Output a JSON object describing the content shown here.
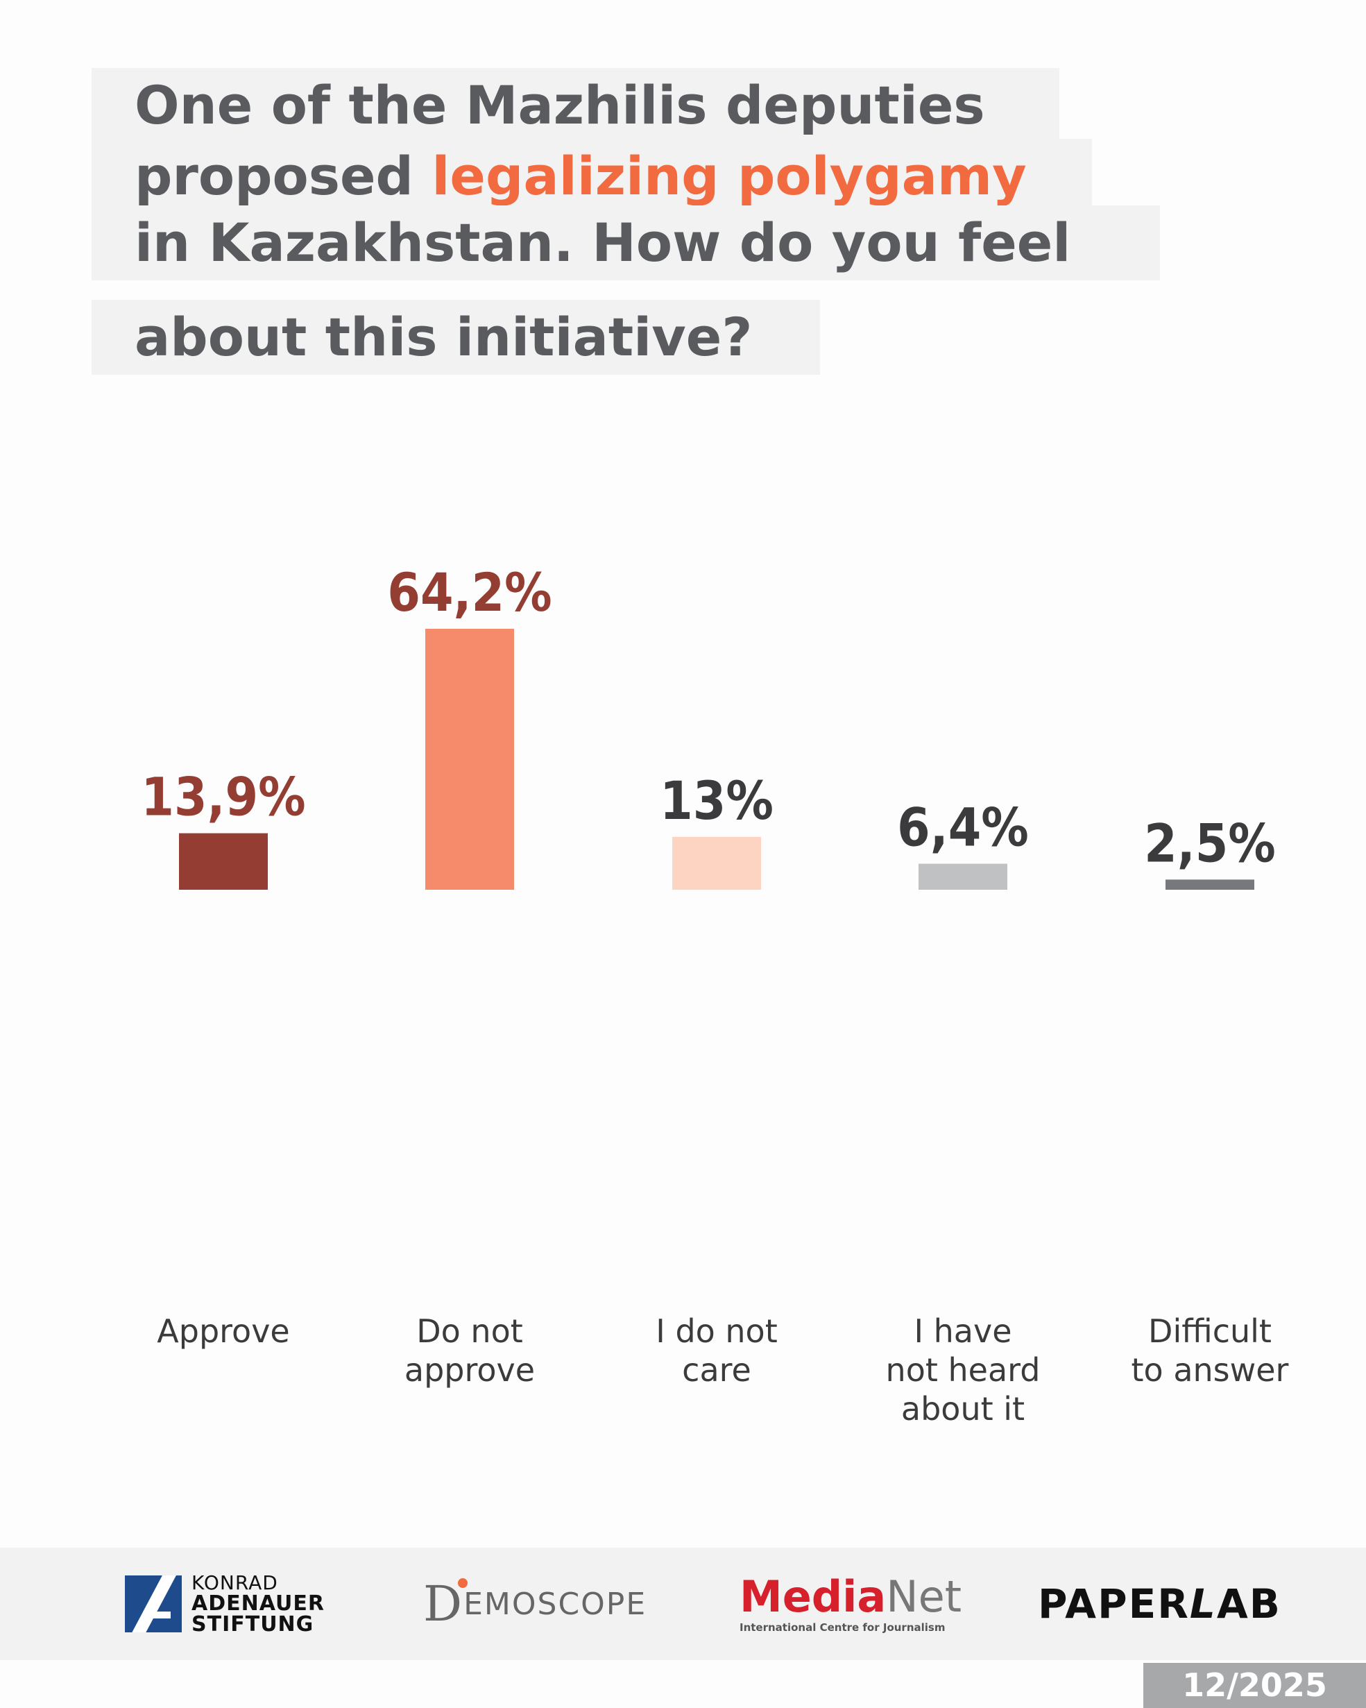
{
  "title": {
    "line1": "One of the Mazhilis deputies",
    "line2_pre": "proposed ",
    "line2_hl": "legalizing polygamy",
    "line3": "in Kazakhstan. How do you feel",
    "line4": "about this initiative?",
    "accent": "#f26a3f"
  },
  "chart_data": {
    "type": "bar",
    "title": "One of the Mazhilis deputies proposed legalizing polygamy in Kazakhstan. How do you feel about this initiative?",
    "categories": [
      [
        "Approve"
      ],
      [
        "Do not",
        "approve"
      ],
      [
        "I do not",
        "care"
      ],
      [
        "I have",
        "not heard",
        "about it"
      ],
      [
        "Difficult",
        "to answer"
      ]
    ],
    "values": [
      13.9,
      64.2,
      13,
      6.4,
      2.5
    ],
    "value_labels": [
      "13,9%",
      "64,2%",
      "13%",
      "6,4%",
      "2,5%"
    ],
    "bar_colors": [
      "#943d33",
      "#f68b6b",
      "#fdd4c1",
      "#c0c1c3",
      "#77787c"
    ],
    "label_colors": [
      "#943d33",
      "#943d33",
      "#3b3b3d",
      "#3b3b3d",
      "#3b3b3d"
    ],
    "grid": false,
    "legend": "none",
    "ylim": [
      0,
      64.2
    ]
  },
  "footer": {
    "kas": [
      "KONRAD",
      "ADENAUER",
      "STIFTUNG"
    ],
    "demoscope_mark": "D",
    "demoscope": "EMOSCOPE",
    "medianet_1": "Media",
    "medianet_2": "Net",
    "medianet_sub": "International Centre for Journalism",
    "paperlab_1": "PAPER",
    "paperlab_2": "L",
    "paperlab_3": "AB",
    "date": "12/2025"
  }
}
